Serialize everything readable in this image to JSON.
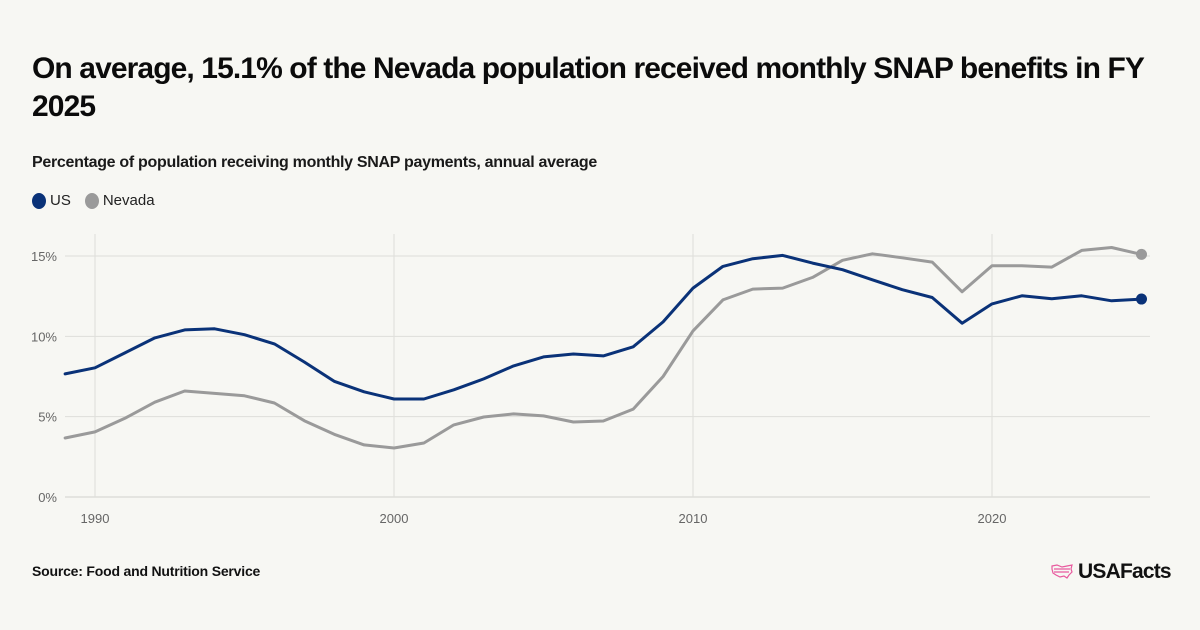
{
  "header": {
    "title": "On average, 15.1% of the Nevada population received monthly SNAP benefits in FY 2025",
    "subtitle": "Percentage of population receiving monthly SNAP payments, annual average"
  },
  "legend": [
    {
      "label": "US",
      "color": "#0a3278"
    },
    {
      "label": "Nevada",
      "color": "#9a9a9a"
    }
  ],
  "footer": {
    "source": "Source: Food and Nutrition Service",
    "brand": "USAFacts",
    "brand_icon": "us-map-icon",
    "brand_icon_color": "#e85a9e"
  },
  "chart_data": {
    "type": "line",
    "title": "On average, 15.1% of the Nevada population received monthly SNAP benefits in FY 2025",
    "subtitle": "Percentage of population receiving monthly SNAP payments, annual average",
    "xlabel": "",
    "ylabel": "",
    "x": [
      1989,
      1990,
      1991,
      1992,
      1993,
      1994,
      1995,
      1996,
      1997,
      1998,
      1999,
      2000,
      2001,
      2002,
      2003,
      2004,
      2005,
      2006,
      2007,
      2008,
      2009,
      2010,
      2011,
      2012,
      2013,
      2014,
      2015,
      2016,
      2017,
      2018,
      2019,
      2020,
      2021,
      2022,
      2023,
      2024,
      2025
    ],
    "xlim": [
      1989,
      2025
    ],
    "ylim": [
      0,
      16
    ],
    "x_ticks": [
      1990,
      2000,
      2010,
      2020
    ],
    "x_tick_labels": [
      "1990",
      "2000",
      "2010",
      "2020"
    ],
    "y_ticks": [
      0,
      5,
      10,
      15
    ],
    "y_tick_labels": [
      "0%",
      "5%",
      "10%",
      "15%"
    ],
    "grid": true,
    "legend_position": "top-left",
    "series": [
      {
        "name": "US",
        "color": "#0a3278",
        "values": [
          7.66,
          8.04,
          8.97,
          9.9,
          10.4,
          10.47,
          10.1,
          9.53,
          8.4,
          7.2,
          6.55,
          6.1,
          6.1,
          6.67,
          7.35,
          8.16,
          8.72,
          8.9,
          8.78,
          9.35,
          10.9,
          13.0,
          14.35,
          14.83,
          15.04,
          14.56,
          14.15,
          13.52,
          12.9,
          12.42,
          10.82,
          12.02,
          12.52,
          12.34,
          12.52,
          12.21,
          12.32
        ],
        "end_marker": true
      },
      {
        "name": "Nevada",
        "color": "#9a9a9a",
        "values": [
          3.67,
          4.05,
          4.9,
          5.9,
          6.6,
          6.45,
          6.3,
          5.85,
          4.75,
          3.9,
          3.24,
          3.05,
          3.36,
          4.49,
          4.98,
          5.17,
          5.05,
          4.67,
          4.73,
          5.47,
          7.5,
          10.34,
          12.27,
          12.94,
          13.0,
          13.67,
          14.73,
          15.14,
          14.89,
          14.62,
          12.77,
          14.39,
          14.39,
          14.31,
          15.35,
          15.53,
          15.1
        ],
        "end_marker": true
      }
    ]
  }
}
